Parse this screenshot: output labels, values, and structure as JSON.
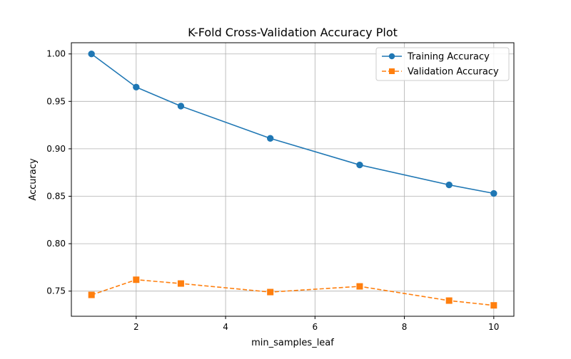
{
  "chart_data": {
    "type": "line",
    "title": "K-Fold Cross-Validation Accuracy Plot",
    "xlabel": "min_samples_leaf",
    "ylabel": "Accuracy",
    "x": [
      1,
      2,
      3,
      5,
      7,
      9,
      10
    ],
    "xlim": [
      0.55,
      10.45
    ],
    "ylim": [
      0.7235,
      1.0118
    ],
    "xticks": [
      2,
      4,
      6,
      8,
      10
    ],
    "yticks": [
      0.75,
      0.8,
      0.85,
      0.9,
      0.95,
      1.0
    ],
    "grid": true,
    "legend_position": "top-right",
    "series": [
      {
        "name": "Training Accuracy",
        "values": [
          1.0,
          0.965,
          0.945,
          0.911,
          0.883,
          0.862,
          0.853
        ],
        "color": "#1f77b4",
        "marker": "circle",
        "linestyle": "solid"
      },
      {
        "name": "Validation Accuracy",
        "values": [
          0.746,
          0.762,
          0.758,
          0.749,
          0.755,
          0.74,
          0.735
        ],
        "color": "#ff7f0e",
        "marker": "square",
        "linestyle": "dashed"
      }
    ]
  }
}
